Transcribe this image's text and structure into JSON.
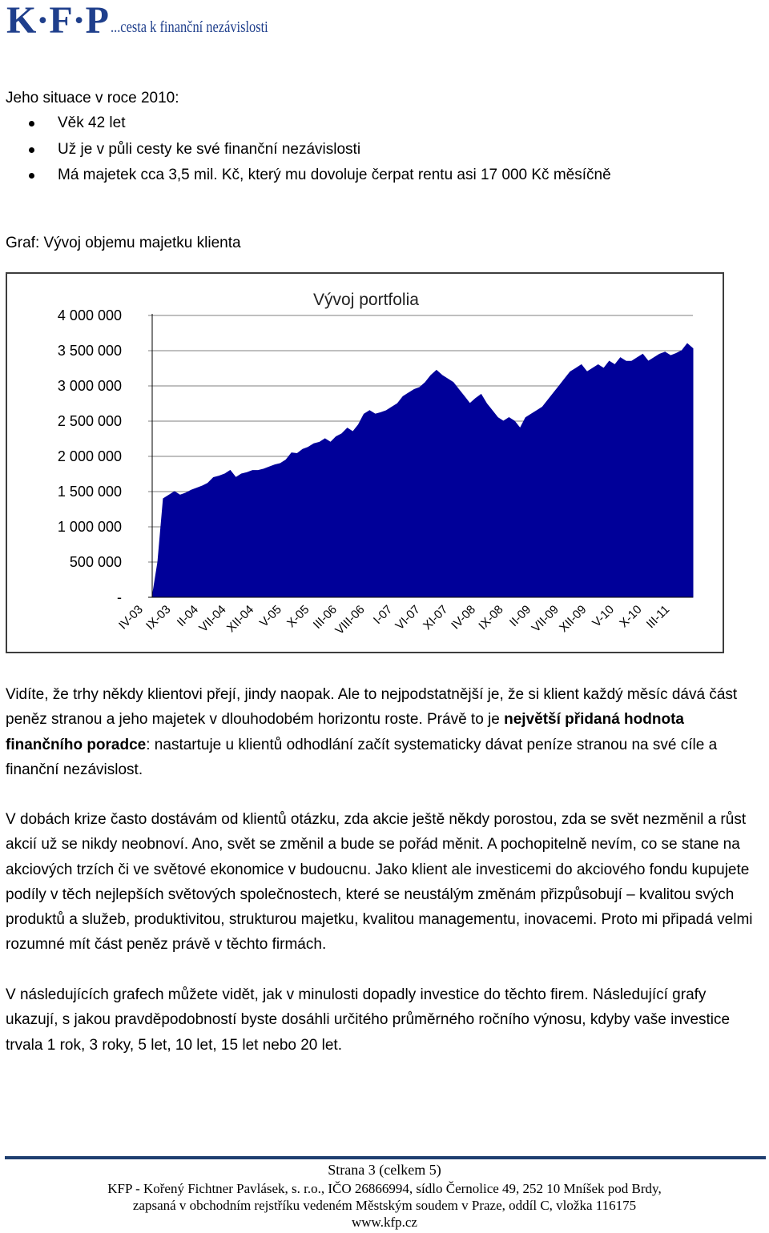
{
  "header": {
    "logo_mark": "K·F·P",
    "logo_tagline": "...cesta k finanční nezávislosti"
  },
  "situation": {
    "heading": "Jeho situace v roce 2010:",
    "bullets": [
      "Věk 42 let",
      "Už je v půli cesty ke své finanční nezávislosti",
      "Má majetek cca 3,5 mil. Kč, který mu dovoluje čerpat rentu asi 17 000 Kč měsíčně"
    ]
  },
  "graph_caption": "Graf: Vývoj objemu majetku klienta",
  "chart_data": {
    "type": "area",
    "title": "Vývoj portfolia",
    "xlabel": "",
    "ylabel": "",
    "ylim": [
      0,
      4000000
    ],
    "y_ticks": [
      "-",
      "500 000",
      "1 000 000",
      "1 500 000",
      "2 000 000",
      "2 500 000",
      "3 000 000",
      "3 500 000",
      "4 000 000"
    ],
    "y_tick_values": [
      0,
      500000,
      1000000,
      1500000,
      2000000,
      2500000,
      3000000,
      3500000,
      4000000
    ],
    "x_tick_labels": [
      "IV-03",
      "IX-03",
      "II-04",
      "VII-04",
      "XII-04",
      "V-05",
      "X-05",
      "III-06",
      "VIII-06",
      "I-07",
      "VI-07",
      "XI-07",
      "IV-08",
      "IX-08",
      "II-09",
      "VII-09",
      "XII-09",
      "V-10",
      "X-10",
      "III-11"
    ],
    "grid": true,
    "legend": "none",
    "color": "#000099",
    "x": [
      "IV-03",
      "V-03",
      "VI-03",
      "VII-03",
      "VIII-03",
      "IX-03",
      "X-03",
      "XI-03",
      "XII-03",
      "I-04",
      "II-04",
      "III-04",
      "IV-04",
      "V-04",
      "VI-04",
      "VII-04",
      "VIII-04",
      "IX-04",
      "X-04",
      "XI-04",
      "XII-04",
      "I-05",
      "II-05",
      "III-05",
      "IV-05",
      "V-05",
      "VI-05",
      "VII-05",
      "VIII-05",
      "IX-05",
      "X-05",
      "XI-05",
      "XII-05",
      "I-06",
      "II-06",
      "III-06",
      "IV-06",
      "V-06",
      "VI-06",
      "VII-06",
      "VIII-06",
      "IX-06",
      "X-06",
      "XI-06",
      "XII-06",
      "I-07",
      "II-07",
      "III-07",
      "IV-07",
      "V-07",
      "VI-07",
      "VII-07",
      "VIII-07",
      "IX-07",
      "X-07",
      "XI-07",
      "XII-07",
      "I-08",
      "II-08",
      "III-08",
      "IV-08",
      "V-08",
      "VI-08",
      "VII-08",
      "VIII-08",
      "IX-08",
      "X-08",
      "XI-08",
      "XII-08",
      "I-09",
      "II-09",
      "III-09",
      "IV-09",
      "V-09",
      "VI-09",
      "VII-09",
      "VIII-09",
      "IX-09",
      "X-09",
      "XI-09",
      "XII-09",
      "I-10",
      "II-10",
      "III-10",
      "IV-10",
      "V-10",
      "VI-10",
      "VII-10",
      "VIII-10",
      "IX-10",
      "X-10",
      "XI-10",
      "XII-10",
      "I-11",
      "II-11",
      "III-11",
      "IV-11",
      "V-11"
    ],
    "values": [
      0,
      500000,
      1400000,
      1450000,
      1500000,
      1450000,
      1480000,
      1520000,
      1550000,
      1580000,
      1620000,
      1700000,
      1720000,
      1750000,
      1800000,
      1700000,
      1750000,
      1770000,
      1800000,
      1800000,
      1820000,
      1850000,
      1880000,
      1900000,
      1950000,
      2050000,
      2040000,
      2100000,
      2130000,
      2180000,
      2200000,
      2250000,
      2200000,
      2280000,
      2320000,
      2400000,
      2350000,
      2450000,
      2600000,
      2650000,
      2600000,
      2620000,
      2650000,
      2700000,
      2750000,
      2850000,
      2900000,
      2950000,
      2980000,
      3050000,
      3150000,
      3220000,
      3150000,
      3100000,
      3050000,
      2950000,
      2850000,
      2750000,
      2820000,
      2880000,
      2750000,
      2650000,
      2550000,
      2500000,
      2550000,
      2500000,
      2400000,
      2550000,
      2600000,
      2650000,
      2700000,
      2800000,
      2900000,
      3000000,
      3100000,
      3200000,
      3250000,
      3300000,
      3200000,
      3250000,
      3300000,
      3250000,
      3350000,
      3300000,
      3400000,
      3350000,
      3350000,
      3400000,
      3450000,
      3350000,
      3400000,
      3450000,
      3480000,
      3430000,
      3460000,
      3500000,
      3600000,
      3530000
    ]
  },
  "para1": {
    "before": "Vidíte, že trhy někdy klientovi přejí, jindy naopak. Ale to nejpodstatnější je, že si klient každý měsíc dává část peněz stranou a jeho majetek v dlouhodobém horizontu roste. Právě to je ",
    "bold": "největší přidaná hodnota finančního poradce",
    "after": ": nastartuje u klientů odhodlání začít systematicky dávat peníze stranou na své cíle a finanční nezávislost."
  },
  "para2": "V dobách krize často dostávám od klientů otázku, zda akcie ještě někdy porostou, zda se svět nezměnil a růst akcií už se nikdy neobnoví. Ano, svět se změnil a bude se pořád měnit. A pochopitelně nevím, co se stane na akciových trzích či ve světové ekonomice v budoucnu. Jako klient ale investicemi do akciového fondu kupujete podíly v těch nejlepších světových společnostech, které se neustálým změnám přizpůsobují – kvalitou svých produktů a služeb, produktivitou, strukturou majetku, kvalitou managementu, inovacemi. Proto mi připadá velmi rozumné mít část peněz právě v těchto firmách.",
  "para3": "V následujících grafech můžete vidět, jak v minulosti dopadly investice do těchto firem. Následující grafy ukazují, s jakou pravděpodobností byste dosáhli určitého průměrného ročního výnosu, kdyby vaše investice trvala 1 rok, 3 roky, 5 let, 10 let, 15 let nebo 20 let.",
  "footer": {
    "page": "Strana 3 (celkem 5)",
    "company": "KFP - Kořený Fichtner Pavlásek, s. r.o., IČO 26866994, sídlo Černolice 49, 252 10  Mníšek pod Brdy,",
    "registry": "zapsaná v obchodním rejstříku vedeném Městským soudem v Praze, oddíl C, vložka 116175",
    "web": "www.kfp.cz"
  }
}
